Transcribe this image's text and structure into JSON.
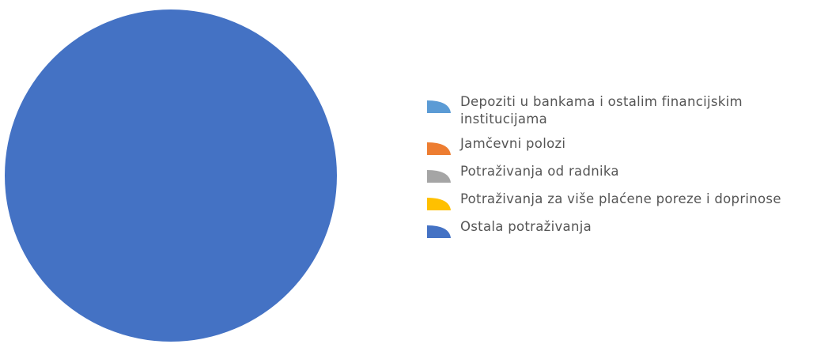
{
  "chart_data": {
    "type": "pie",
    "categories": [
      "Depoziti u bankama i ostalim financijskim institucijama",
      "Jamčevni polozi",
      "Potraživanja od radnika",
      "Potraživanja za više plaćene poreze i doprinose",
      "Ostala potraživanja"
    ],
    "values": [
      0,
      0,
      0,
      0,
      100
    ],
    "colors": [
      "#5b9bd5",
      "#ed7d31",
      "#a5a5a5",
      "#ffc000",
      "#4472c4"
    ],
    "legend": "right"
  }
}
